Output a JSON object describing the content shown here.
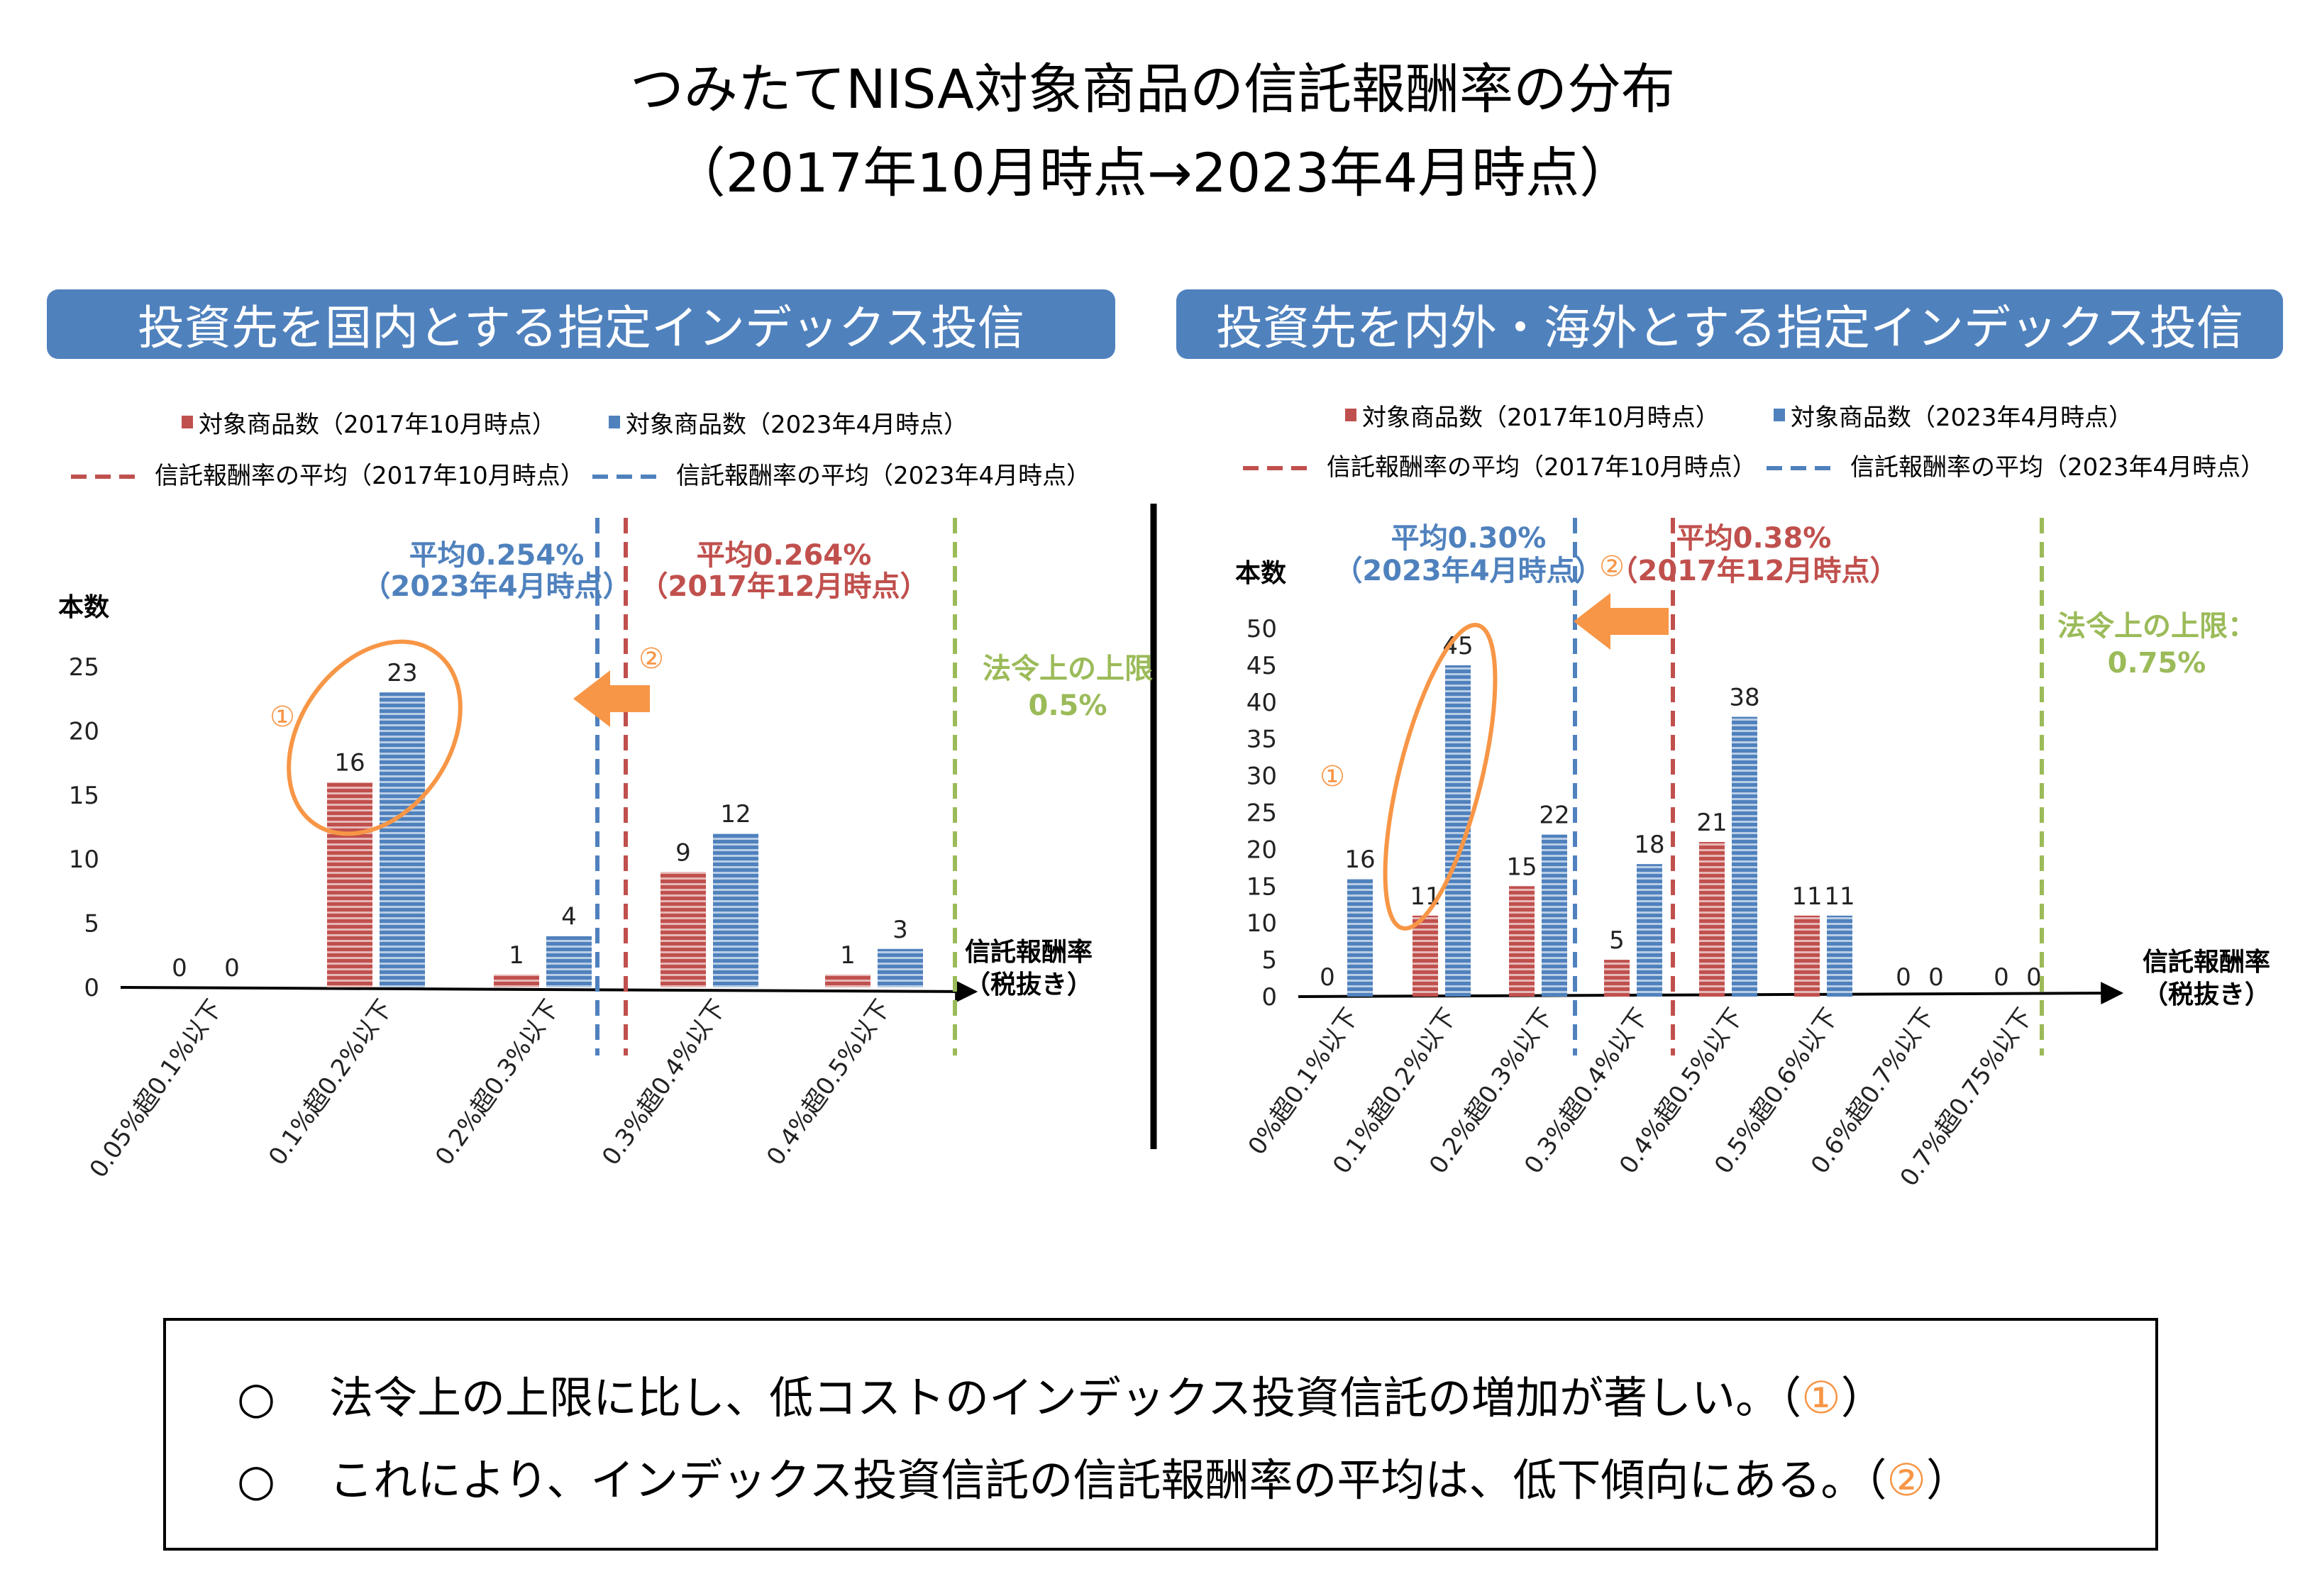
{
  "title_line1": "つみたてNISA対象商品の信託報酬率の分布",
  "title_line2": "（2017年10月時点→2023年4月時点）",
  "colors": {
    "red": "#c0504d",
    "blue": "#4f81bd",
    "green": "#9bbb59",
    "orange": "#f79646",
    "header": "#4f81bd"
  },
  "legend": {
    "count_2017": "対象商品数（2017年10月時点）",
    "count_2023": "対象商品数（2023年4月時点）",
    "avg_2017": "信託報酬率の平均（2017年10月時点）",
    "avg_2023": "信託報酬率の平均（2023年4月時点）"
  },
  "chart_data": [
    {
      "type": "bar",
      "title": "投資先を国内とする指定インデックス投信",
      "ylabel": "本数",
      "xlabel": "信託報酬率（税抜き）",
      "ylim": [
        0,
        25
      ],
      "yticks": [
        0,
        5,
        10,
        15,
        20,
        25
      ],
      "categories": [
        "0.05%超0.1%以下",
        "0.1%超0.2%以下",
        "0.2%超0.3%以下",
        "0.3%超0.4%以下",
        "0.4%超0.5%以下"
      ],
      "series": [
        {
          "name": "対象商品数（2017年10月時点）",
          "values": [
            0,
            16,
            1,
            9,
            1
          ]
        },
        {
          "name": "対象商品数（2023年4月時点）",
          "values": [
            0,
            23,
            4,
            12,
            3
          ]
        }
      ],
      "annotations": {
        "avg_2023_line1": "平均0.254%",
        "avg_2023_line2": "（2023年4月時点）",
        "avg_2017_line1": "平均0.264%",
        "avg_2017_line2": "（2017年12月時点）",
        "limit_line1": "法令上の上限",
        "limit_line2": "0.5%",
        "marker1": "①",
        "marker2": "②"
      }
    },
    {
      "type": "bar",
      "title": "投資先を内外・海外とする指定インデックス投信",
      "ylabel": "本数",
      "xlabel": "信託報酬率（税抜き）",
      "ylim": [
        0,
        50
      ],
      "yticks": [
        0,
        5,
        10,
        15,
        20,
        25,
        30,
        35,
        40,
        45,
        50
      ],
      "categories": [
        "0%超0.1%以下",
        "0.1%超0.2%以下",
        "0.2%超0.3%以下",
        "0.3%超0.4%以下",
        "0.4%超0.5%以下",
        "0.5%超0.6%以下",
        "0.6%超0.7%以下",
        "0.7%超0.75%以下"
      ],
      "series": [
        {
          "name": "対象商品数（2017年10月時点）",
          "values": [
            0,
            11,
            15,
            5,
            21,
            11,
            0,
            0
          ]
        },
        {
          "name": "対象商品数（2023年4月時点）",
          "values": [
            16,
            45,
            22,
            18,
            38,
            11,
            0,
            0
          ]
        }
      ],
      "annotations": {
        "avg_2023_line1": "平均0.30%",
        "avg_2023_line2": "（2023年4月時点）",
        "avg_2017_line1": "平均0.38%",
        "avg_2017_line2": "（2017年12月時点）",
        "limit_line1": "法令上の上限：",
        "limit_line2": "0.75%",
        "marker1": "①",
        "marker2": "②"
      }
    }
  ],
  "notes": {
    "bullet": "○",
    "line1_text": "法令上の上限に比し、低コストのインデックス投資信託の増加が著しい。（",
    "line1_num": "①",
    "line1_end": "）",
    "line2_text": "これにより、インデックス投資信託の信託報酬率の平均は、低下傾向にある。（",
    "line2_num": "②",
    "line2_end": "）"
  }
}
